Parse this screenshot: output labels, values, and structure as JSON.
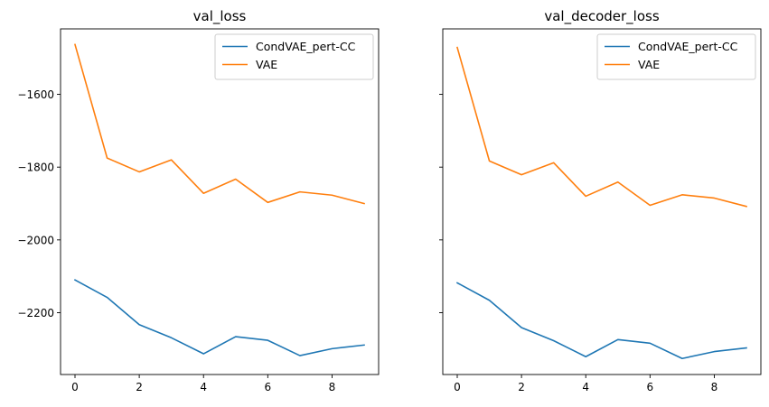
{
  "chart_data": [
    {
      "type": "line",
      "title": "val_loss",
      "xlabel": "",
      "ylabel": "",
      "x": [
        0,
        1,
        2,
        3,
        4,
        5,
        6,
        7,
        8,
        9
      ],
      "xlim": [
        -0.45,
        9.45
      ],
      "ylim": [
        -2370,
        -1420
      ],
      "xticks": [
        0,
        2,
        4,
        6,
        8
      ],
      "yticks": [
        -2200,
        -2000,
        -1800,
        -1600
      ],
      "ytick_labels": [
        "−2200",
        "−2000",
        "−1800",
        "−1600"
      ],
      "show_yticklabels": true,
      "grid": false,
      "legend": "top-right",
      "series": [
        {
          "name": "CondVAE_pert-CC",
          "color": "#1f77b4",
          "values": [
            -2110,
            -2158,
            -2233,
            -2269,
            -2313,
            -2266,
            -2276,
            -2318,
            -2299,
            -2289
          ]
        },
        {
          "name": "VAE",
          "color": "#ff7f0e",
          "values": [
            -1463,
            -1775,
            -1813,
            -1780,
            -1872,
            -1833,
            -1897,
            -1868,
            -1877,
            -1900
          ]
        }
      ]
    },
    {
      "type": "line",
      "title": "val_decoder_loss",
      "xlabel": "",
      "ylabel": "",
      "x": [
        0,
        1,
        2,
        3,
        4,
        5,
        6,
        7,
        8,
        9
      ],
      "xlim": [
        -0.45,
        9.45
      ],
      "ylim": [
        -2370,
        -1420
      ],
      "xticks": [
        0,
        2,
        4,
        6,
        8
      ],
      "yticks": [
        -2200,
        -2000,
        -1800,
        -1600
      ],
      "ytick_labels": [
        "",
        "",
        "",
        ""
      ],
      "show_yticklabels": false,
      "grid": false,
      "legend": "top-right",
      "series": [
        {
          "name": "CondVAE_pert-CC",
          "color": "#1f77b4",
          "values": [
            -2118,
            -2166,
            -2241,
            -2277,
            -2321,
            -2274,
            -2284,
            -2326,
            -2307,
            -2297
          ]
        },
        {
          "name": "VAE",
          "color": "#ff7f0e",
          "values": [
            -1471,
            -1783,
            -1821,
            -1788,
            -1880,
            -1841,
            -1905,
            -1876,
            -1885,
            -1908
          ]
        }
      ]
    }
  ]
}
